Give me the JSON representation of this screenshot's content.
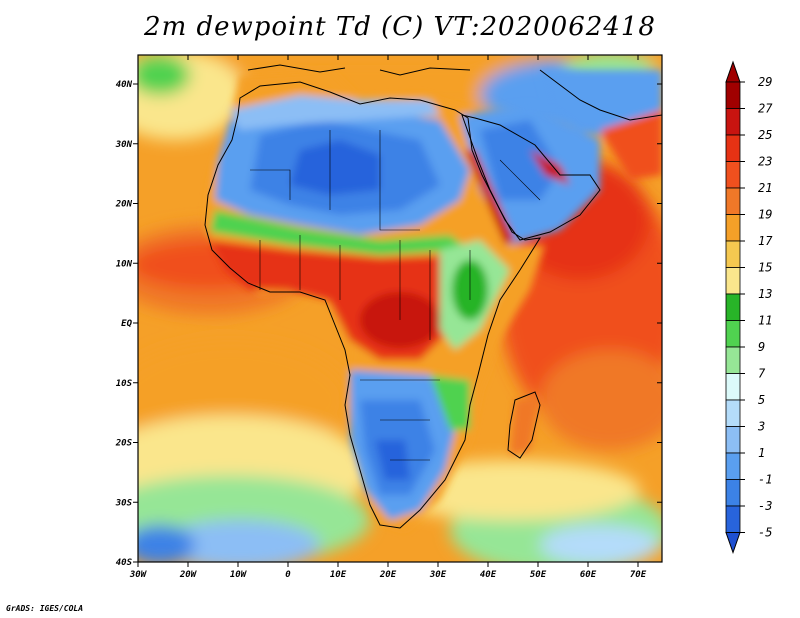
{
  "title": "2m dewpoint Td (C) VT:2020062418",
  "credit": "GrADS: IGES/COLA",
  "lat_ticks": [
    "40N",
    "30N",
    "20N",
    "10N",
    "EQ",
    "10S",
    "20S",
    "30S",
    "40S"
  ],
  "lon_ticks": [
    "30W",
    "20W",
    "10W",
    "0",
    "10E",
    "20E",
    "30E",
    "40E",
    "50E",
    "60E",
    "70E"
  ],
  "colorbar": {
    "labels": [
      "29",
      "27",
      "25",
      "23",
      "21",
      "19",
      "17",
      "15",
      "13",
      "11",
      "9",
      "7",
      "5",
      "3",
      "1",
      "-1",
      "-3",
      "-5"
    ],
    "colors": [
      "#a00000",
      "#c81410",
      "#e63214",
      "#f0501e",
      "#f07828",
      "#f5a028",
      "#f5c850",
      "#fae68c",
      "#28b428",
      "#50d250",
      "#96e696",
      "#dcfafa",
      "#b4dcfa",
      "#8cbef5",
      "#5a9ff0",
      "#3c82e6",
      "#2864dc",
      "#1e50d2"
    ]
  },
  "map": {
    "region": "Africa, Arabia and surrounding oceans",
    "lon_range": [
      "30W",
      "75E"
    ],
    "lat_range": [
      "40S",
      "45N"
    ]
  }
}
